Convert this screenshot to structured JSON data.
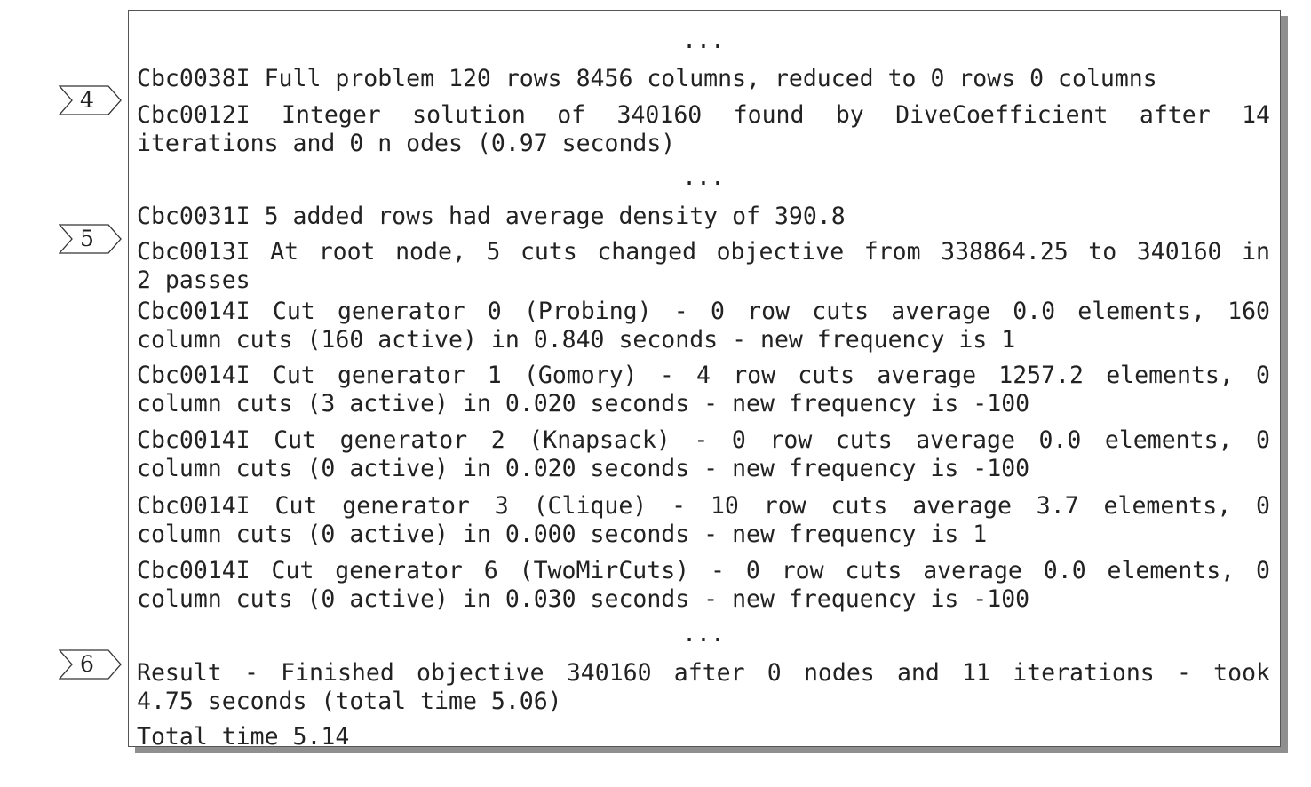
{
  "markers": [
    {
      "label": "4"
    },
    {
      "label": "5"
    },
    {
      "label": "6"
    }
  ],
  "lines": {
    "ellipsis": "...",
    "l1": "Cbc0038I Full problem 120 rows 8456 columns, reduced to 0 rows 0 columns",
    "l2a": "Cbc0012I Integer solution of 340160 found by DiveCoefficient after 14",
    "l2b": "iterations and 0 n odes (0.97 seconds)",
    "l3": "Cbc0031I 5 added rows had average density of 390.8",
    "l4a": "Cbc0013I At root node, 5 cuts changed objective from 338864.25 to 340160 in",
    "l4b": "2 passes",
    "l5a": "Cbc0014I Cut generator 0 (Probing) - 0 row cuts average 0.0 elements, 160",
    "l5b": "column cuts (160 active)  in 0.840 seconds - new frequency is 1",
    "l6a": "Cbc0014I Cut generator 1 (Gomory) - 4 row cuts average 1257.2 elements, 0",
    "l6b": "column cuts (3 active)  in 0.020 seconds - new frequency is -100",
    "l7a": "Cbc0014I Cut generator 2 (Knapsack) - 0 row cuts average 0.0 elements, 0",
    "l7b": "column cuts (0 active)  in 0.020 seconds - new frequency is -100",
    "l8a": "Cbc0014I Cut generator 3 (Clique) - 10 row cuts average 3.7 elements, 0",
    "l8b": "column cuts (0 active)  in 0.000 seconds - new frequency is 1",
    "l9a": "Cbc0014I Cut generator 6 (TwoMirCuts) - 0 row cuts average 0.0 elements, 0",
    "l9b": "column cuts (0 active)  in 0.030 seconds - new frequency is -100",
    "l10a": "Result - Finished objective 340160 after 0 nodes and 11 iterations - took",
    "l10b": "4.75 seconds (total time 5.06)",
    "l11": "Total time 5.14"
  }
}
